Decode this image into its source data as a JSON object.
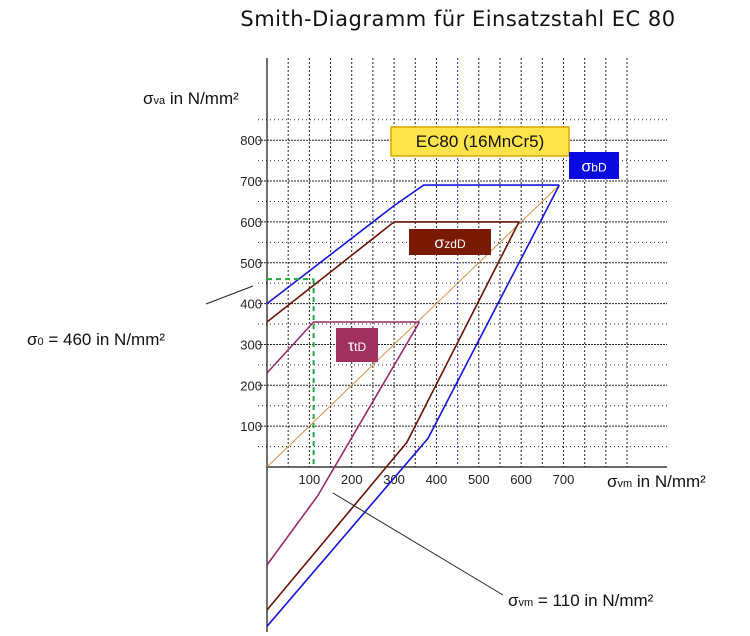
{
  "chart_data": {
    "type": "line",
    "title": "Smith-Diagramm für Einsatzstahl EC 80",
    "material_label": "EC80 (16MnCr5)",
    "xlabel": {
      "main": "σ",
      "sub": "vm",
      "rest": " in N/mm²"
    },
    "ylabel": {
      "main": "σ",
      "sub": "va",
      "rest": " in N/mm²"
    },
    "x_ticks": [
      100,
      200,
      300,
      400,
      500,
      600,
      700
    ],
    "y_ticks": [
      100,
      200,
      300,
      400,
      500,
      600,
      700,
      800
    ],
    "xlim": [
      0,
      920
    ],
    "ylim": [
      -395,
      1080
    ],
    "grid": true,
    "series": [
      {
        "name": "σbD",
        "label_main": "σ",
        "label_sub": "bD",
        "color": "#1515e0",
        "label_bg": "#0a0ae0",
        "label_fg": "#ffffff",
        "upper": [
          [
            0,
            400
          ],
          [
            300,
            640
          ],
          [
            370,
            690
          ],
          [
            690,
            690
          ]
        ],
        "lower": [
          [
            0,
            -390
          ],
          [
            380,
            70
          ],
          [
            690,
            690
          ]
        ]
      },
      {
        "name": "σzdD",
        "label_main": "σ",
        "label_sub": "zdD",
        "color": "#6b1200",
        "label_bg": "#7a1a05",
        "label_fg": "#ffffff",
        "upper": [
          [
            0,
            355
          ],
          [
            300,
            600
          ],
          [
            595,
            600
          ]
        ],
        "lower": [
          [
            0,
            -350
          ],
          [
            330,
            60
          ],
          [
            595,
            600
          ]
        ]
      },
      {
        "name": "τtD",
        "label_main": "τ",
        "label_sub": "tD",
        "color": "#9a2a6a",
        "label_bg": "#a0305e",
        "label_fg": "#ffffff",
        "upper": [
          [
            0,
            230
          ],
          [
            110,
            355
          ],
          [
            360,
            355
          ]
        ],
        "lower": [
          [
            0,
            -240
          ],
          [
            120,
            -70
          ],
          [
            360,
            355
          ]
        ]
      }
    ],
    "diagonal": {
      "color": "#d9904a",
      "points": [
        [
          0,
          0
        ],
        [
          690,
          690
        ]
      ]
    },
    "guide": {
      "color": "#1eaa3c",
      "x": 110,
      "y": 460
    },
    "vertical_marker": {
      "color": "#5050ff",
      "x": 450
    },
    "annotations": [
      {
        "main": "σ",
        "sub": "0",
        "rest": " = 460 in N/mm²"
      },
      {
        "main": "σ",
        "sub": "vm",
        "rest": " = 110 in N/mm²"
      }
    ]
  }
}
